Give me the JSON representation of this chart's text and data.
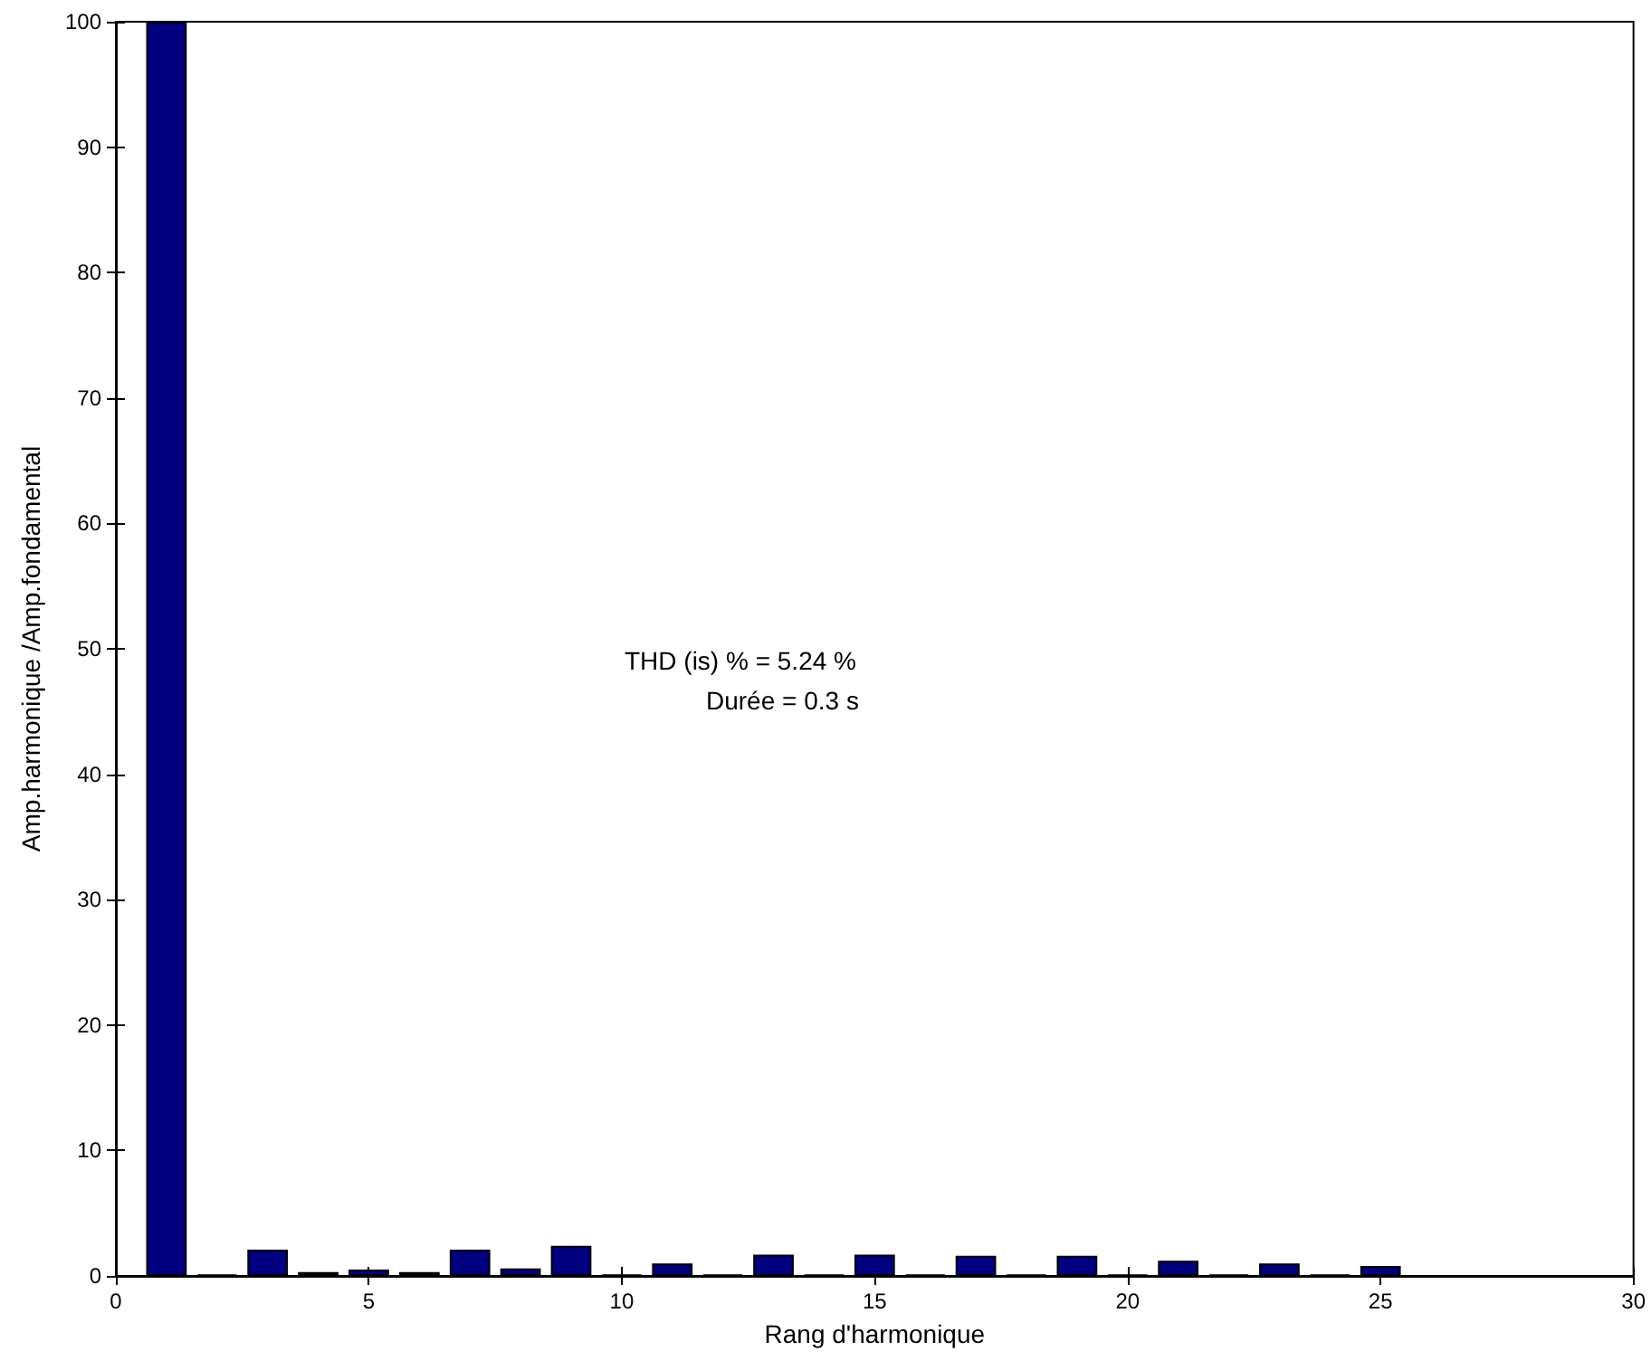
{
  "chart_data": {
    "type": "bar",
    "xlabel": "Rang d'harmonique",
    "ylabel": "Amp.harmonique /Amp.fondamental",
    "annotations": [
      "THD (is) % = 5.24 %",
      "Durée = 0.3 s"
    ],
    "x": [
      1,
      2,
      3,
      4,
      5,
      6,
      7,
      8,
      9,
      10,
      11,
      12,
      13,
      14,
      15,
      16,
      17,
      18,
      19,
      20,
      21,
      22,
      23,
      24,
      25
    ],
    "values": [
      100,
      0.1,
      2.1,
      0.3,
      0.5,
      0.3,
      2.1,
      0.6,
      2.4,
      0.1,
      1.0,
      0.1,
      1.7,
      0.1,
      1.7,
      0.1,
      1.6,
      0.1,
      1.6,
      0.1,
      1.2,
      0.1,
      1.0,
      0.1,
      0.8
    ],
    "color": "#000080",
    "xlim": [
      0,
      30
    ],
    "xticks": [
      0,
      5,
      10,
      15,
      20,
      25,
      30
    ],
    "ylim": [
      0,
      100
    ],
    "yticks": [
      0,
      10,
      20,
      30,
      40,
      50,
      60,
      70,
      80,
      90,
      100
    ],
    "grid": false
  }
}
